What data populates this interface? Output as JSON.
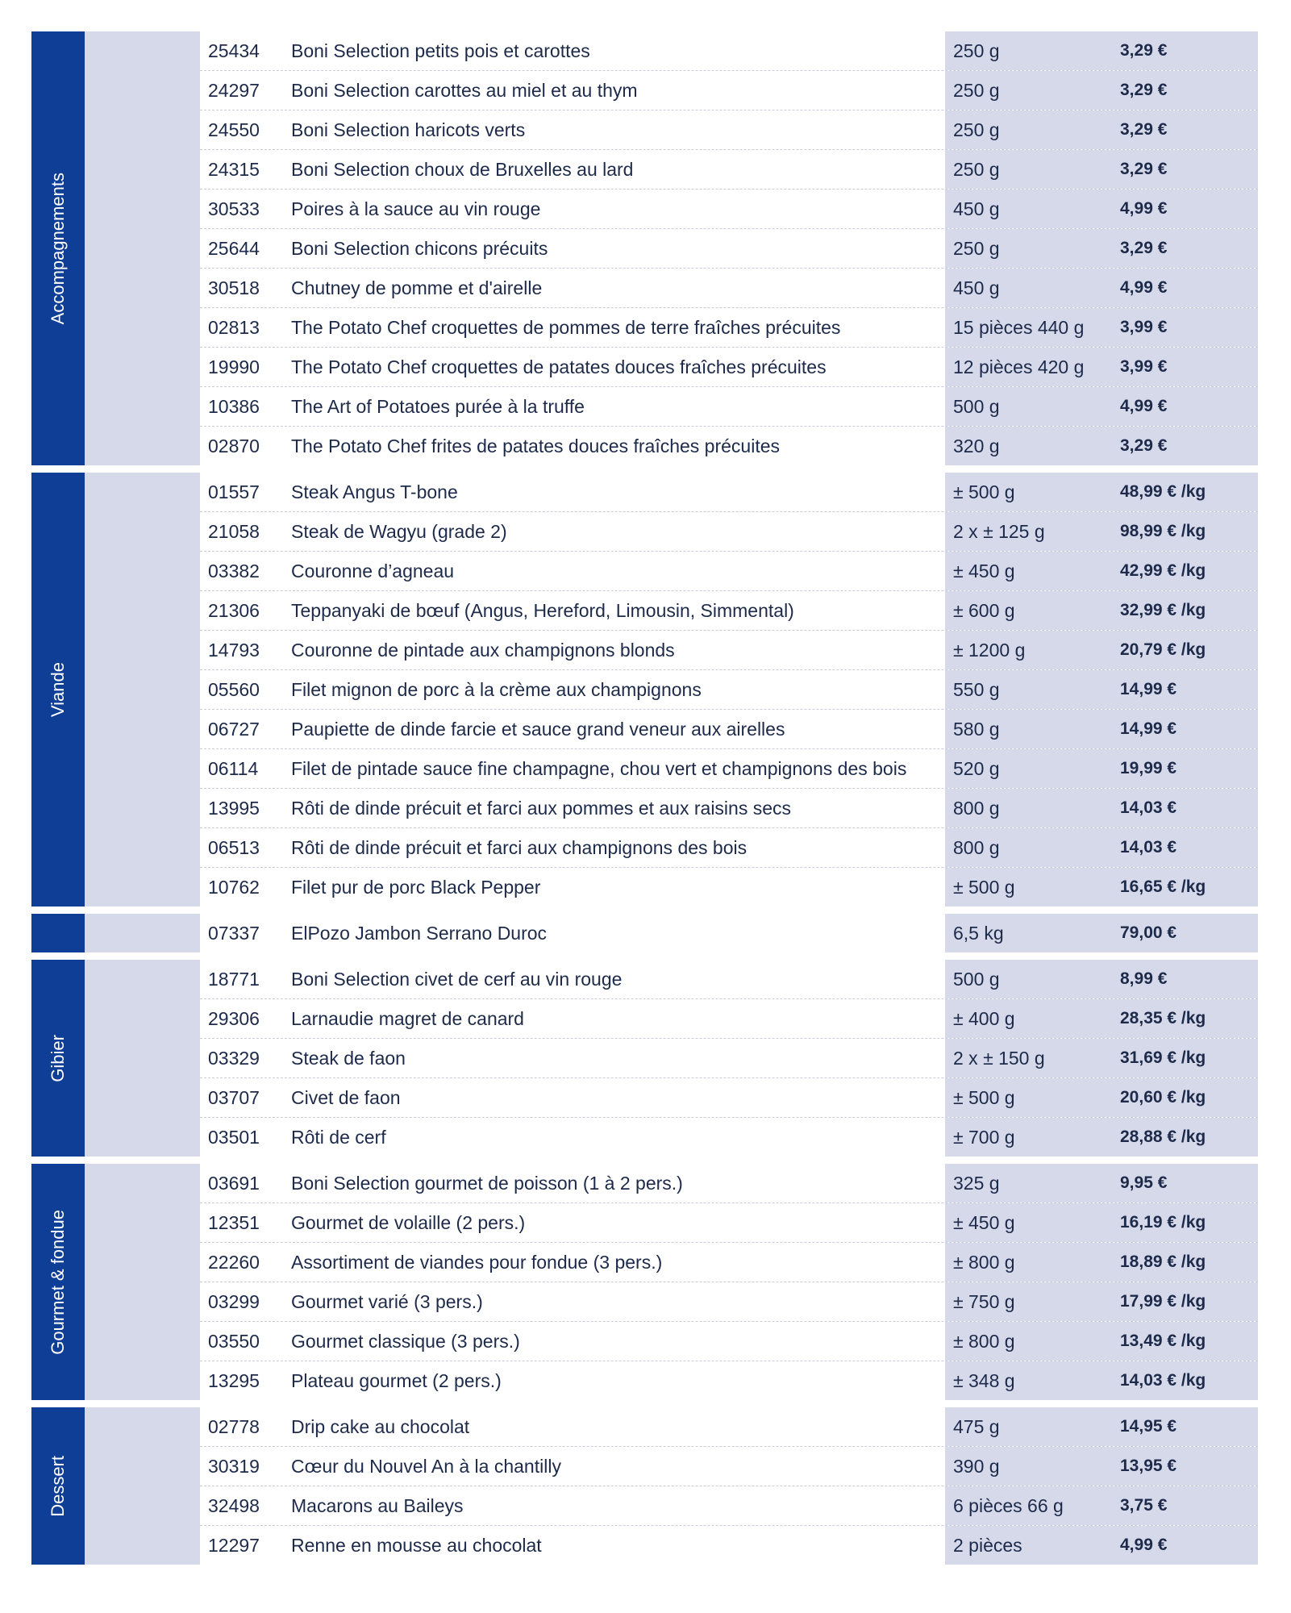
{
  "sections": [
    {
      "label": "Accompagnements",
      "rows": [
        [
          "25434",
          "Boni Selection petits pois et carottes",
          "250 g",
          "3,29 €"
        ],
        [
          "24297",
          "Boni Selection carottes au miel et au thym",
          "250 g",
          "3,29 €"
        ],
        [
          "24550",
          "Boni Selection haricots verts",
          "250 g",
          "3,29 €"
        ],
        [
          "24315",
          "Boni Selection choux de Bruxelles au lard",
          "250 g",
          "3,29 €"
        ],
        [
          "30533",
          "Poires à la sauce au vin rouge",
          "450 g",
          "4,99 €"
        ],
        [
          "25644",
          "Boni Selection chicons précuits",
          "250 g",
          "3,29 €"
        ],
        [
          "30518",
          "Chutney de pomme et d'airelle",
          "450 g",
          "4,99 €"
        ],
        [
          "02813",
          "The Potato Chef croquettes de pommes de terre fraîches précuites",
          "15 pièces 440 g",
          "3,99 €"
        ],
        [
          "19990",
          "The Potato Chef croquettes de patates douces fraîches précuites",
          "12 pièces 420 g",
          "3,99 €"
        ],
        [
          "10386",
          "The Art of Potatoes purée à la truffe",
          "500 g",
          "4,99 €"
        ],
        [
          "02870",
          "The Potato Chef frites de patates douces fraîches précuites",
          "320 g",
          "3,29 €"
        ]
      ]
    },
    {
      "label": "Viande",
      "rows": [
        [
          "01557",
          "Steak Angus T-bone",
          "± 500 g",
          "48,99 € /kg"
        ],
        [
          "21058",
          "Steak de Wagyu (grade 2)",
          "2 x ± 125 g",
          "98,99 € /kg"
        ],
        [
          "03382",
          "Couronne d’agneau",
          "± 450 g",
          "42,99 € /kg"
        ],
        [
          "21306",
          "Teppanyaki de bœuf (Angus, Hereford, Limousin, Simmental)",
          "± 600 g",
          "32,99 € /kg"
        ],
        [
          "14793",
          "Couronne de pintade aux champignons blonds",
          "± 1200 g",
          "20,79 € /kg"
        ],
        [
          "05560",
          "Filet mignon de porc à la crème aux champignons",
          "550 g",
          "14,99 €"
        ],
        [
          "06727",
          "Paupiette de dinde farcie et sauce grand veneur aux airelles",
          "580 g",
          "14,99 €"
        ],
        [
          "06114",
          "Filet de pintade sauce fine champagne, chou vert et champignons des bois",
          "520 g",
          "19,99 €"
        ],
        [
          "13995",
          "Rôti de dinde précuit et farci aux pommes et aux raisins secs",
          "800 g",
          "14,03 €"
        ],
        [
          "06513",
          "Rôti de dinde précuit et farci aux champignons des bois",
          "800 g",
          "14,03 €"
        ],
        [
          "10762",
          "Filet pur de porc Black Pepper",
          "± 500 g",
          "16,65 € /kg"
        ]
      ]
    },
    {
      "rows": [
        [
          "07337",
          "ElPozo Jambon Serrano Duroc",
          "6,5 kg",
          "79,00 €"
        ]
      ]
    },
    {
      "label": "Gibier",
      "rows": [
        [
          "18771",
          "Boni Selection civet de cerf au vin rouge",
          "500 g",
          "8,99 €"
        ],
        [
          "29306",
          "Larnaudie magret de canard",
          "± 400 g",
          "28,35 € /kg"
        ],
        [
          "03329",
          "Steak de faon",
          "2 x ± 150 g",
          "31,69 € /kg"
        ],
        [
          "03707",
          "Civet de faon",
          "± 500 g",
          "20,60 € /kg"
        ],
        [
          "03501",
          "Rôti de cerf",
          "± 700 g",
          "28,88 € /kg"
        ]
      ]
    },
    {
      "label": "Gourmet & fondue",
      "rows": [
        [
          "03691",
          "Boni Selection gourmet de poisson (1 à 2 pers.)",
          "325 g",
          "9,95 €"
        ],
        [
          "12351",
          "Gourmet de volaille (2 pers.)",
          "± 450 g",
          "16,19 € /kg"
        ],
        [
          "22260",
          "Assortiment de viandes pour fondue (3 pers.)",
          "± 800 g",
          "18,89 € /kg"
        ],
        [
          "03299",
          "Gourmet varié (3 pers.)",
          "± 750 g",
          "17,99 € /kg"
        ],
        [
          "03550",
          "Gourmet classique (3 pers.)",
          "± 800 g",
          "13,49 € /kg"
        ],
        [
          "13295",
          "Plateau gourmet (2 pers.)",
          "± 348 g",
          "14,03 € /kg"
        ]
      ]
    },
    {
      "label": "Dessert",
      "rows": [
        [
          "02778",
          "Drip cake au chocolat",
          "475 g",
          "14,95 €"
        ],
        [
          "30319",
          "Cœur du Nouvel An à la chantilly",
          "390 g",
          "13,95 €"
        ],
        [
          "32498",
          "Macarons au Baileys",
          "6 pièces 66 g",
          "3,75 €"
        ],
        [
          "12297",
          "Renne en mousse au chocolat",
          "2 pièces",
          "4,99 €"
        ]
      ]
    }
  ]
}
